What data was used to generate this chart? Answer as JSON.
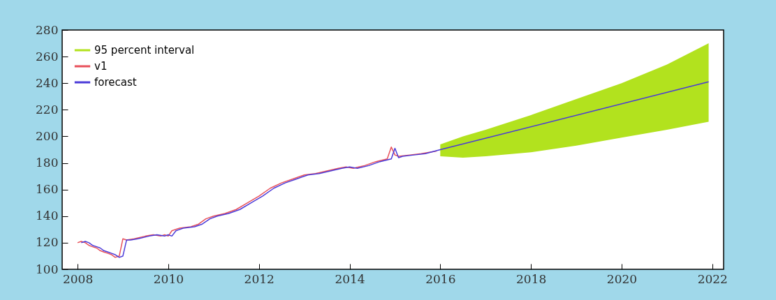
{
  "chart_data": {
    "type": "line",
    "xlim": [
      2007.66,
      2022.25
    ],
    "xticks": [
      2008,
      2010,
      2012,
      2014,
      2016,
      2018,
      2020,
      2022
    ],
    "ylim": [
      100,
      280
    ],
    "yticks": [
      100,
      120,
      140,
      160,
      180,
      200,
      220,
      240,
      260,
      280
    ],
    "grid": false,
    "legend": "top left",
    "series": [
      {
        "name": "95 percent interval",
        "type": "area",
        "color": "#b2e21e",
        "x": [
          2016.0,
          2016.5,
          2017,
          2018,
          2019,
          2020,
          2021,
          2021.92
        ],
        "values": [
          null,
          null,
          null,
          null,
          null,
          null,
          null,
          null
        ],
        "lower": [
          185,
          184,
          185,
          188,
          193,
          199,
          205,
          211
        ],
        "upper": [
          194,
          200,
          205,
          216,
          228,
          240,
          254,
          270
        ]
      },
      {
        "name": "v1",
        "color": "#e8505a",
        "x": [
          2008.0,
          2008.08,
          2008.17,
          2008.25,
          2008.33,
          2008.42,
          2008.5,
          2008.58,
          2008.67,
          2008.75,
          2008.83,
          2008.92,
          2009.0,
          2009.08,
          2009.25,
          2009.5,
          2009.67,
          2009.83,
          2009.92,
          2010.0,
          2010.08,
          2010.25,
          2010.5,
          2010.67,
          2010.83,
          2011.0,
          2011.25,
          2011.5,
          2011.75,
          2012.0,
          2012.25,
          2012.5,
          2012.75,
          2013.0,
          2013.25,
          2013.5,
          2013.75,
          2013.92,
          2014.08,
          2014.33,
          2014.58,
          2014.83,
          2014.92,
          2015.0,
          2015.08,
          2015.33,
          2015.58,
          2015.92
        ],
        "values": [
          120,
          121,
          120,
          118,
          117,
          116,
          114,
          113,
          112,
          111,
          109,
          110,
          123,
          122,
          123,
          125,
          126,
          125,
          126,
          125,
          129,
          131,
          132,
          134,
          138,
          140,
          142,
          145,
          150,
          155,
          161,
          165,
          168,
          171,
          172,
          174,
          176,
          177,
          176,
          178,
          181,
          183,
          192,
          186,
          185,
          186,
          187,
          189
        ]
      },
      {
        "name": "forecast",
        "color": "#4a3ad8",
        "x": [
          2008.08,
          2008.17,
          2008.25,
          2008.33,
          2008.42,
          2008.5,
          2008.58,
          2008.67,
          2008.75,
          2008.83,
          2008.92,
          2009.0,
          2009.08,
          2009.17,
          2009.33,
          2009.58,
          2009.75,
          2009.92,
          2010.0,
          2010.08,
          2010.17,
          2010.33,
          2010.58,
          2010.75,
          2010.92,
          2011.08,
          2011.33,
          2011.58,
          2011.83,
          2012.08,
          2012.33,
          2012.58,
          2012.83,
          2013.08,
          2013.33,
          2013.58,
          2013.83,
          2014.0,
          2014.17,
          2014.42,
          2014.67,
          2014.92,
          2015.0,
          2015.08,
          2015.17,
          2015.42,
          2015.67,
          2016.0,
          2021.92
        ],
        "values": [
          120,
          121,
          120,
          118,
          117,
          116,
          114,
          113,
          112,
          111,
          109,
          110,
          122,
          122,
          123,
          125,
          126,
          125,
          126,
          125,
          129,
          131,
          132,
          134,
          138,
          140,
          142,
          145,
          150,
          155,
          161,
          165,
          168,
          171,
          172,
          174,
          176,
          177,
          176,
          178,
          181,
          183,
          191,
          184,
          185,
          186,
          187,
          190,
          241
        ]
      }
    ]
  }
}
